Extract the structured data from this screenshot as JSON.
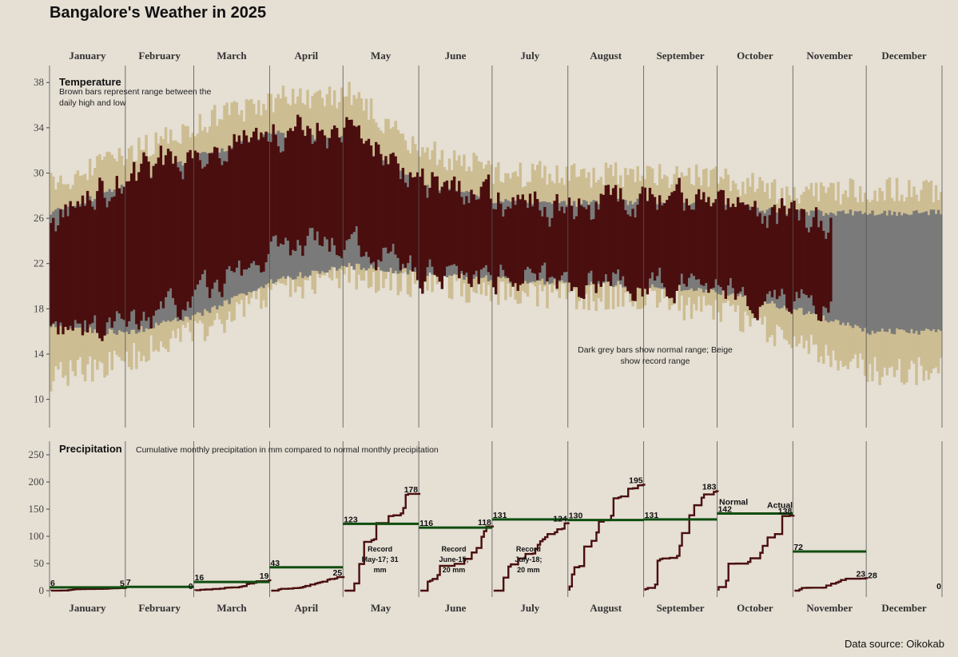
{
  "colors": {
    "background": "#e5dfd4",
    "record": "#cdbd92",
    "normal": "#7a7a7a",
    "actual": "#4a0e0e",
    "normal_line": "#0f4d0f",
    "divider": "#555555"
  },
  "chart_data": {
    "title": "Bangalore's Weather in 2025",
    "source": "Data source: Oikokab",
    "months": [
      "January",
      "February",
      "March",
      "April",
      "May",
      "June",
      "July",
      "August",
      "September",
      "October",
      "November",
      "December"
    ],
    "month_days": [
      31,
      28,
      31,
      30,
      31,
      30,
      31,
      31,
      30,
      31,
      30,
      31
    ],
    "temperature": {
      "type": "bar",
      "title": "Temperature",
      "note_actual": [
        "Brown bars represent range between the",
        "daily high and low"
      ],
      "note_normal": [
        "Dark grey bars show normal range; Beige",
        "show record range"
      ],
      "yticks": [
        10,
        14,
        18,
        22,
        26,
        30,
        34,
        38
      ],
      "ylim": [
        7.5,
        39.5
      ],
      "actual_through_day": 320,
      "normal_low_keys": [
        16.5,
        15.8,
        17.5,
        20.5,
        21.8,
        21.2,
        20.6,
        20.3,
        20.1,
        19.5,
        18.0,
        16.0,
        16.0
      ],
      "normal_high_keys": [
        26.5,
        28.8,
        31.5,
        33.5,
        33.0,
        29.0,
        27.5,
        27.3,
        27.5,
        27.0,
        26.5,
        26.5,
        26.5
      ],
      "record_low_keys": [
        12.0,
        13.5,
        16.0,
        19.5,
        21.0,
        20.2,
        19.5,
        19.2,
        18.8,
        17.8,
        15.0,
        12.5,
        12.5
      ],
      "record_high_keys": [
        29.0,
        31.5,
        34.5,
        36.5,
        37.0,
        32.0,
        30.0,
        29.8,
        30.0,
        29.5,
        28.0,
        28.5,
        28.5
      ],
      "actual_low_keys": [
        16.0,
        16.5,
        19.0,
        23.0,
        24.0,
        21.3,
        20.8,
        20.5,
        20.3,
        20.0,
        18.5,
        17.0,
        17.0
      ],
      "actual_high_keys": [
        25.5,
        29.5,
        32.0,
        34.0,
        33.5,
        29.5,
        27.5,
        27.0,
        27.5,
        27.0,
        26.0,
        25.0,
        25.0
      ]
    },
    "precipitation": {
      "type": "line",
      "title": "Precipitation",
      "subtitle": "Cumulative monthly precipitation in mm compared to normal monthly precipitation",
      "yticks": [
        0,
        50,
        100,
        150,
        200,
        250
      ],
      "ylim": [
        0,
        275
      ],
      "normal": [
        6,
        7,
        16,
        43,
        123,
        116,
        131,
        130,
        131,
        142,
        72,
        null
      ],
      "actual": [
        5,
        0,
        19,
        25,
        178,
        118,
        124,
        195,
        183,
        138,
        23,
        0
      ],
      "extra_labels": [
        {
          "month": 10,
          "text": "28"
        }
      ],
      "record_notes": [
        {
          "month": 4,
          "lines": [
            "Record",
            "May-17; 31",
            "mm"
          ]
        },
        {
          "month": 5,
          "lines": [
            "Record",
            "June-15;",
            "20 mm"
          ]
        },
        {
          "month": 6,
          "lines": [
            "Record",
            "July-18;",
            "20 mm"
          ]
        }
      ],
      "legend": {
        "normal": "Normal",
        "actual": "Actual"
      }
    }
  }
}
